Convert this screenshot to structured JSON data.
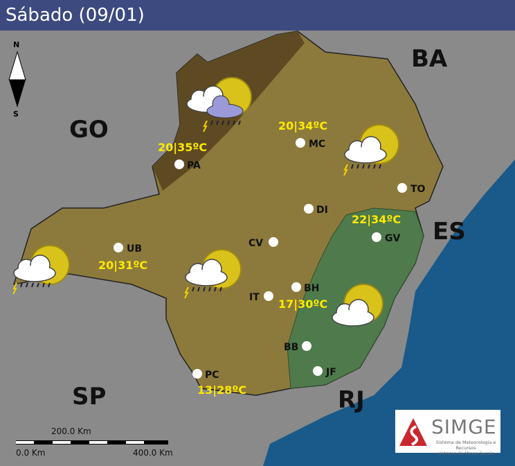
{
  "header": {
    "title": "Sábado (09/01)"
  },
  "compass": {
    "north": "N",
    "south": "S"
  },
  "states": [
    {
      "label": "BA"
    },
    {
      "label": "GO"
    },
    {
      "label": "ES"
    },
    {
      "label": "SP"
    },
    {
      "label": "RJ"
    }
  ],
  "cities": [
    {
      "code": "PA",
      "temp": "20|35ºC",
      "icon": "thunderstorm-icon"
    },
    {
      "code": "MC",
      "temp": "20|34ºC",
      "icon": "thunderstorm-icon"
    },
    {
      "code": "TO"
    },
    {
      "code": "DI"
    },
    {
      "code": "GV",
      "temp": "22|34ºC",
      "icon": "partly-cloudy-icon"
    },
    {
      "code": "UB",
      "temp": "20|31ºC",
      "icon": "thunderstorm-icon"
    },
    {
      "code": "CV",
      "icon": "thunderstorm-icon"
    },
    {
      "code": "IT"
    },
    {
      "code": "BH",
      "temp": "17|30ºC"
    },
    {
      "code": "BB"
    },
    {
      "code": "JF"
    },
    {
      "code": "PC",
      "temp": "13|28ºC"
    }
  ],
  "scale": {
    "mid": "200.0 Km",
    "start": "0.0 Km",
    "end": "400.0 Km"
  },
  "logo": {
    "name": "SIMGE",
    "subtitle_1": "Sistema de Meteorologia e Recursos",
    "subtitle_2": "Hídricos de Minas Gerais"
  },
  "colors": {
    "region_default": "#8c7a3c",
    "region_dark": "#5e4a22",
    "region_green": "#4f7a4c",
    "temp_text": "#ffea00",
    "ocean": "#1a5a8a",
    "background": "#8a8a8a",
    "header": "#3d4a80"
  }
}
